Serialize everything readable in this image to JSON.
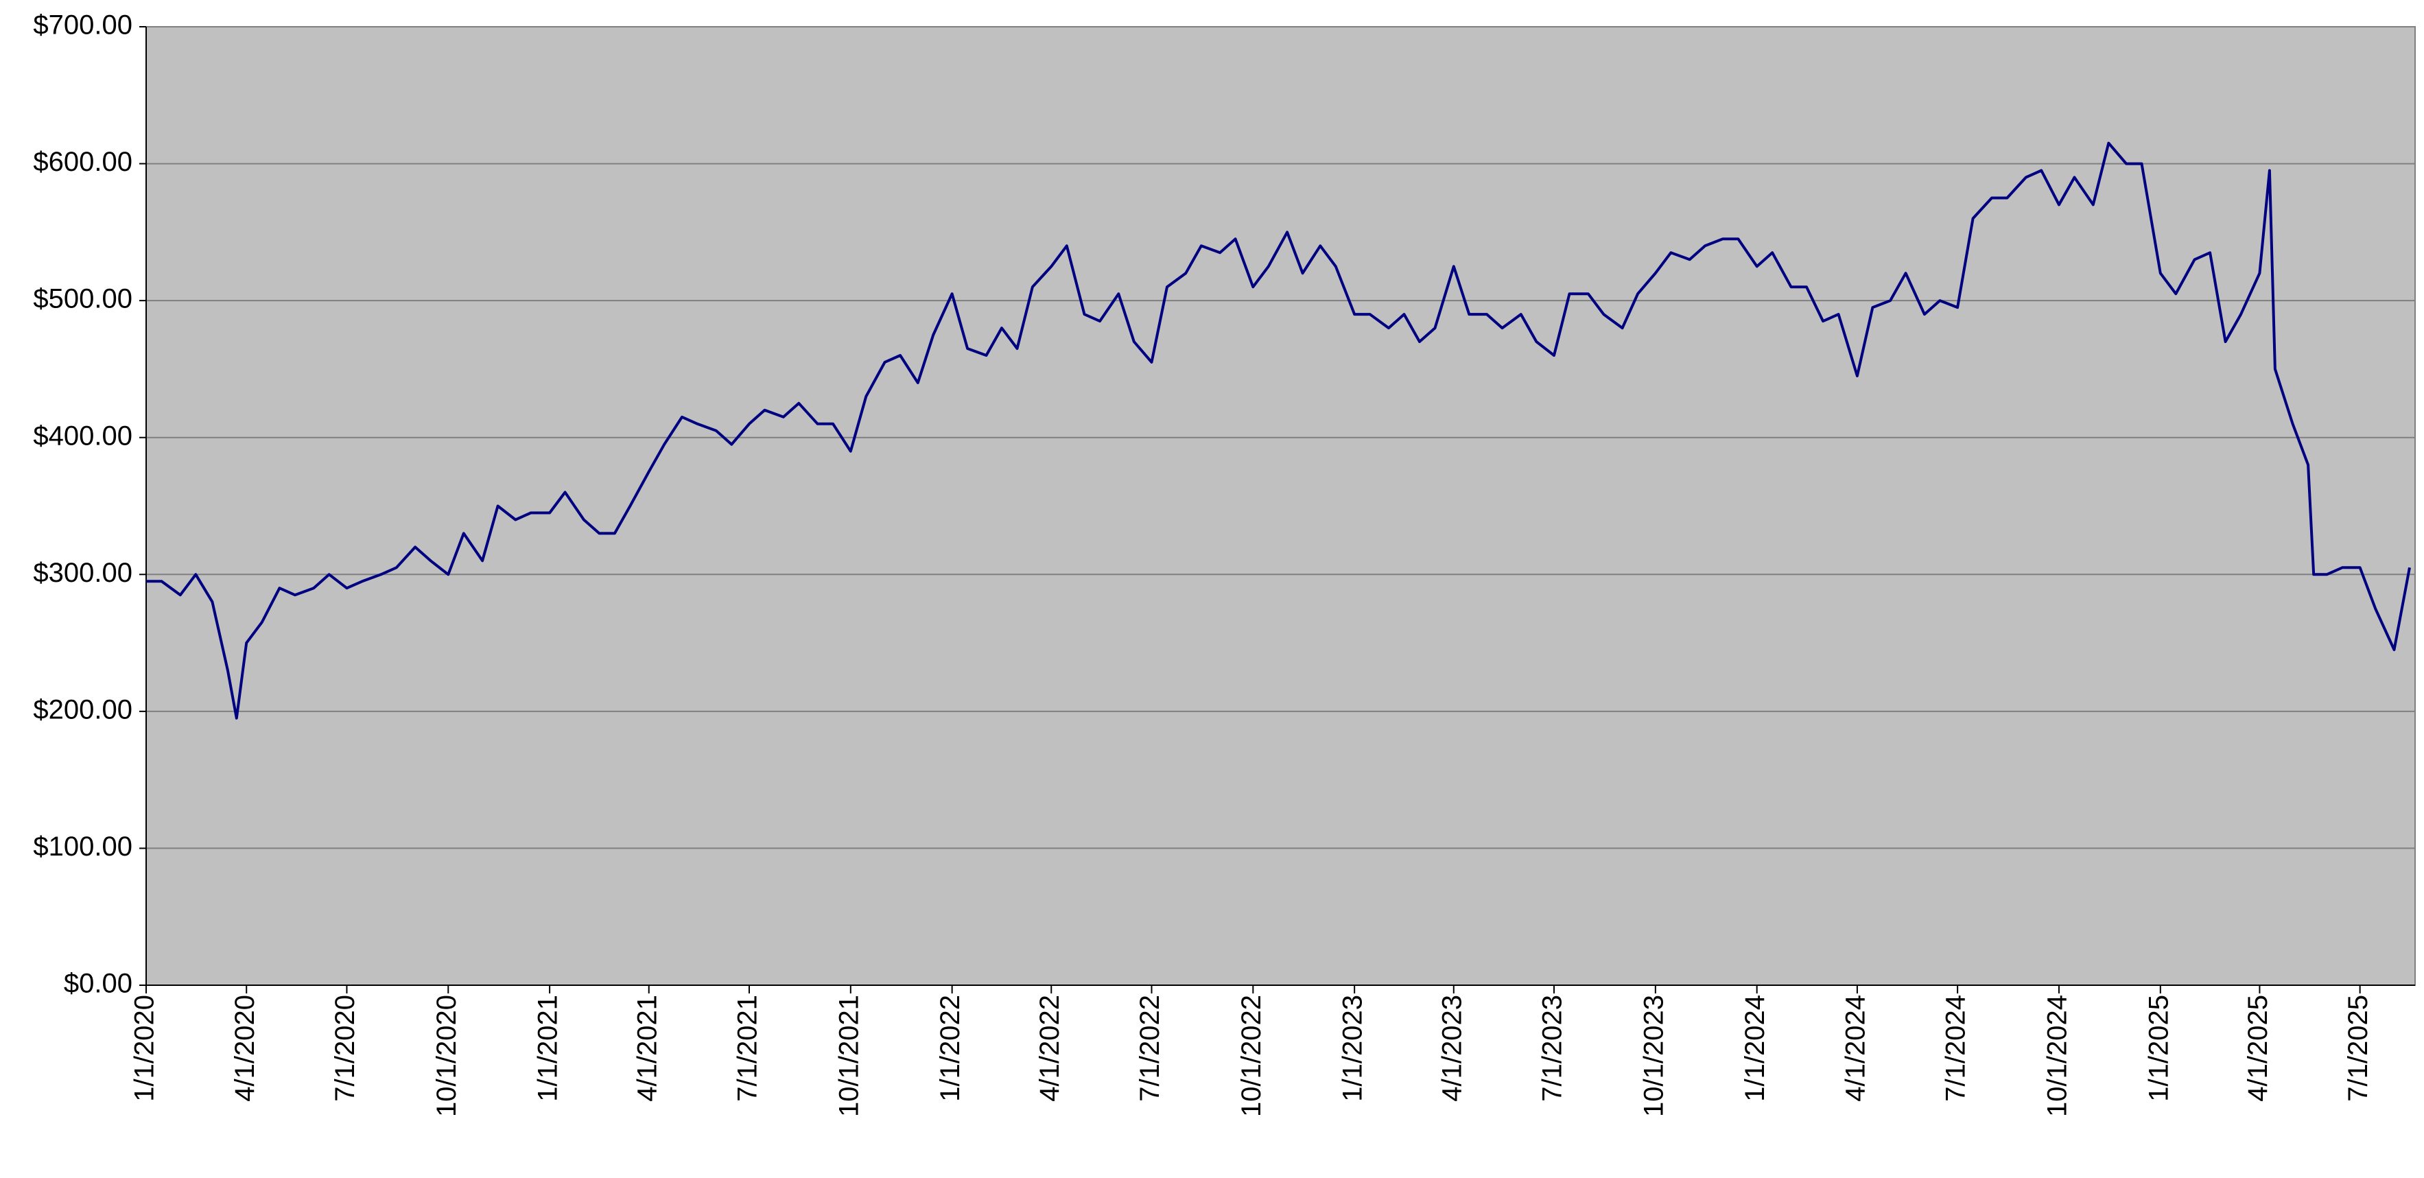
{
  "chart_data": {
    "type": "line",
    "color": "#000080",
    "plot_background": "#c0c0c0",
    "grid": true,
    "x": [
      "1/1/2020",
      "1/15/2020",
      "2/1/2020",
      "2/15/2020",
      "3/1/2020",
      "3/15/2020",
      "3/23/2020",
      "4/1/2020",
      "4/15/2020",
      "5/1/2020",
      "5/15/2020",
      "6/1/2020",
      "6/15/2020",
      "7/1/2020",
      "7/15/2020",
      "8/1/2020",
      "8/15/2020",
      "9/1/2020",
      "9/15/2020",
      "10/1/2020",
      "10/15/2020",
      "11/1/2020",
      "11/15/2020",
      "12/1/2020",
      "12/15/2020",
      "1/1/2021",
      "1/15/2021",
      "2/1/2021",
      "2/15/2021",
      "3/1/2021",
      "3/15/2021",
      "4/1/2021",
      "4/15/2021",
      "5/1/2021",
      "5/15/2021",
      "6/1/2021",
      "6/15/2021",
      "7/1/2021",
      "7/15/2021",
      "8/1/2021",
      "8/15/2021",
      "9/1/2021",
      "9/15/2021",
      "10/1/2021",
      "10/15/2021",
      "11/1/2021",
      "11/15/2021",
      "12/1/2021",
      "12/15/2021",
      "1/1/2022",
      "1/15/2022",
      "2/1/2022",
      "2/15/2022",
      "3/1/2022",
      "3/15/2022",
      "4/1/2022",
      "4/15/2022",
      "5/1/2022",
      "5/15/2022",
      "6/1/2022",
      "6/15/2022",
      "7/1/2022",
      "7/15/2022",
      "8/1/2022",
      "8/15/2022",
      "9/1/2022",
      "9/15/2022",
      "10/1/2022",
      "10/15/2022",
      "11/1/2022",
      "11/15/2022",
      "12/1/2022",
      "12/15/2022",
      "1/1/2023",
      "1/15/2023",
      "2/1/2023",
      "2/15/2023",
      "3/1/2023",
      "3/15/2023",
      "4/1/2023",
      "4/15/2023",
      "5/1/2023",
      "5/15/2023",
      "6/1/2023",
      "6/15/2023",
      "7/1/2023",
      "7/15/2023",
      "8/1/2023",
      "8/15/2023",
      "9/1/2023",
      "9/15/2023",
      "10/1/2023",
      "10/15/2023",
      "11/1/2023",
      "11/15/2023",
      "12/1/2023",
      "12/15/2023",
      "1/1/2024",
      "1/15/2024",
      "2/1/2024",
      "2/15/2024",
      "3/1/2024",
      "3/15/2024",
      "4/1/2024",
      "4/15/2024",
      "5/1/2024",
      "5/15/2024",
      "6/1/2024",
      "6/15/2024",
      "7/1/2024",
      "7/15/2024",
      "8/1/2024",
      "8/15/2024",
      "9/1/2024",
      "9/15/2024",
      "10/1/2024",
      "10/15/2024",
      "11/1/2024",
      "11/15/2024",
      "12/1/2024",
      "12/15/2024",
      "1/1/2025",
      "1/15/2025",
      "2/1/2025",
      "2/15/2025",
      "3/1/2025",
      "3/15/2025",
      "4/1/2025",
      "4/10/2025",
      "4/15/2025",
      "5/1/2025",
      "5/15/2025",
      "5/20/2025",
      "6/1/2025",
      "6/15/2025",
      "7/1/2025",
      "7/15/2025",
      "8/1/2025",
      "8/15/2025"
    ],
    "values": [
      295,
      295,
      285,
      300,
      280,
      230,
      195,
      250,
      265,
      290,
      285,
      290,
      300,
      290,
      295,
      300,
      305,
      320,
      310,
      300,
      330,
      310,
      350,
      340,
      345,
      345,
      360,
      340,
      330,
      330,
      350,
      375,
      395,
      415,
      410,
      405,
      395,
      410,
      420,
      415,
      425,
      410,
      410,
      390,
      430,
      455,
      460,
      440,
      475,
      505,
      465,
      460,
      480,
      465,
      510,
      525,
      540,
      490,
      485,
      505,
      470,
      455,
      510,
      520,
      540,
      535,
      545,
      510,
      525,
      550,
      520,
      540,
      525,
      490,
      490,
      480,
      490,
      470,
      480,
      525,
      490,
      490,
      480,
      490,
      470,
      460,
      505,
      505,
      490,
      480,
      505,
      520,
      535,
      530,
      540,
      545,
      545,
      525,
      535,
      510,
      510,
      485,
      490,
      445,
      495,
      500,
      520,
      490,
      500,
      495,
      560,
      575,
      575,
      590,
      595,
      570,
      590,
      570,
      615,
      600,
      600,
      520,
      505,
      530,
      535,
      470,
      490,
      520,
      595,
      450,
      410,
      380,
      300,
      300,
      305,
      305,
      275,
      245,
      305
    ],
    "xlim": [
      "1/1/2020",
      "8/20/2025"
    ],
    "xticks": [
      "1/1/2020",
      "4/1/2020",
      "7/1/2020",
      "10/1/2020",
      "1/1/2021",
      "4/1/2021",
      "7/1/2021",
      "10/1/2021",
      "1/1/2022",
      "4/1/2022",
      "7/1/2022",
      "10/1/2022",
      "1/1/2023",
      "4/1/2023",
      "7/1/2023",
      "10/1/2023",
      "1/1/2024",
      "4/1/2024",
      "7/1/2024",
      "10/1/2024",
      "1/1/2025",
      "4/1/2025",
      "7/1/2025"
    ],
    "ylim": [
      0,
      700
    ],
    "yticks": [
      {
        "value": 0,
        "label": "$0.00"
      },
      {
        "value": 100,
        "label": "$100.00"
      },
      {
        "value": 200,
        "label": "$200.00"
      },
      {
        "value": 300,
        "label": "$300.00"
      },
      {
        "value": 400,
        "label": "$400.00"
      },
      {
        "value": 500,
        "label": "$500.00"
      },
      {
        "value": 600,
        "label": "$600.00"
      },
      {
        "value": 700,
        "label": "$700.00"
      }
    ]
  }
}
